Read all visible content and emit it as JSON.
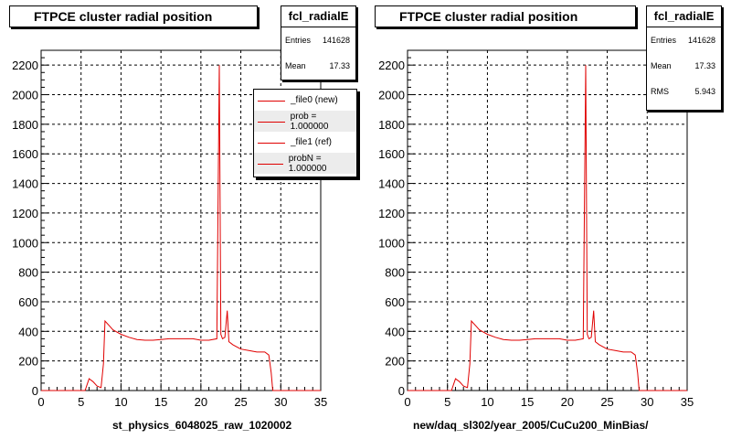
{
  "chart_data": [
    {
      "type": "line",
      "title": "FTPCE cluster radial position",
      "xlabel": "st_physics_6048025_raw_1020002",
      "xlim": [
        0,
        35
      ],
      "ylim": [
        0,
        2300
      ],
      "xticks": [
        "0",
        "5",
        "10",
        "15",
        "20",
        "25",
        "30",
        "35"
      ],
      "yticks": [
        "0",
        "200",
        "400",
        "600",
        "800",
        "1000",
        "1200",
        "1400",
        "1600",
        "1800",
        "2000",
        "2200"
      ],
      "grid": true,
      "series": [
        {
          "color": "#e00000",
          "x": [
            0,
            5.5,
            6,
            6.5,
            7,
            7.5,
            7.8,
            8,
            8.5,
            9,
            10,
            11,
            12,
            13,
            14,
            15,
            16,
            17,
            18,
            19,
            20,
            21,
            22,
            22.3,
            22.5,
            22.7,
            23,
            23.3,
            23.5,
            24,
            25,
            26,
            27,
            28,
            28.5,
            28.8,
            29,
            35
          ],
          "y": [
            0,
            0,
            80,
            60,
            30,
            20,
            180,
            470,
            440,
            410,
            380,
            360,
            345,
            340,
            340,
            345,
            350,
            350,
            350,
            350,
            340,
            340,
            350,
            2200,
            380,
            350,
            360,
            540,
            330,
            310,
            280,
            270,
            260,
            260,
            240,
            120,
            0,
            0
          ]
        }
      ],
      "stats": {
        "name": "fcl_radialE",
        "rows": [
          {
            "label": "Entries",
            "value": "141628"
          },
          {
            "label": "Mean",
            "value": "17.33"
          }
        ]
      },
      "legend": {
        "position": "top-right",
        "entries": [
          "_file0 (new)",
          "prob = 1.000000",
          "_file1 (ref)",
          "probN = 1.000000"
        ]
      }
    },
    {
      "type": "line",
      "title": "FTPCE cluster radial position",
      "xlabel": "new/daq_sl302/year_2005/CuCu200_MinBias/",
      "xlim": [
        0,
        35
      ],
      "ylim": [
        0,
        2300
      ],
      "xticks": [
        "0",
        "5",
        "10",
        "15",
        "20",
        "25",
        "30",
        "35"
      ],
      "yticks": [
        "0",
        "200",
        "400",
        "600",
        "800",
        "1000",
        "1200",
        "1400",
        "1600",
        "1800",
        "2000",
        "2200"
      ],
      "grid": true,
      "series": [
        {
          "color": "#e00000",
          "x": [
            0,
            5.5,
            6,
            6.5,
            7,
            7.5,
            7.8,
            8,
            8.5,
            9,
            10,
            11,
            12,
            13,
            14,
            15,
            16,
            17,
            18,
            19,
            20,
            21,
            22,
            22.3,
            22.5,
            22.7,
            23,
            23.3,
            23.5,
            24,
            25,
            26,
            27,
            28,
            28.5,
            28.8,
            29,
            35
          ],
          "y": [
            0,
            0,
            80,
            60,
            30,
            20,
            180,
            470,
            440,
            410,
            380,
            360,
            345,
            340,
            340,
            345,
            350,
            350,
            350,
            350,
            340,
            340,
            350,
            2200,
            380,
            350,
            360,
            540,
            330,
            310,
            280,
            270,
            260,
            260,
            240,
            120,
            0,
            0
          ]
        }
      ],
      "stats": {
        "name": "fcl_radialE",
        "rows": [
          {
            "label": "Entries",
            "value": "141628"
          },
          {
            "label": "Mean",
            "value": "17.33"
          },
          {
            "label": "RMS",
            "value": "5.943"
          }
        ]
      }
    }
  ]
}
